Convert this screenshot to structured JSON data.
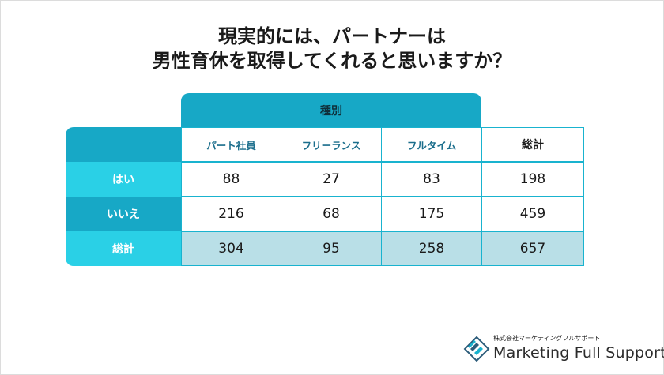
{
  "title": {
    "line1": "現実的には、パートナーは",
    "line2": "男性育休を取得してくれると思いますか？"
  },
  "table": {
    "group_header": "種別",
    "columns": [
      "パート社員",
      "フリーランス",
      "フルタイム",
      "総計"
    ],
    "rows": [
      {
        "label": "はい",
        "values": [
          "88",
          "27",
          "83",
          "198"
        ]
      },
      {
        "label": "いいえ",
        "values": [
          "216",
          "68",
          "175",
          "459"
        ]
      },
      {
        "label": "総計",
        "values": [
          "304",
          "95",
          "258",
          "657"
        ]
      }
    ]
  },
  "colors": {
    "accent": "#17a8c6",
    "row_yes": "#2ad0e6",
    "row_no": "#17a8c6",
    "row_total": "#2ad0e6",
    "total_fill": "#b9dfe7"
  },
  "logo": {
    "company": "株式会社マーケティングフルサポート",
    "name": "Marketing Full Support"
  }
}
